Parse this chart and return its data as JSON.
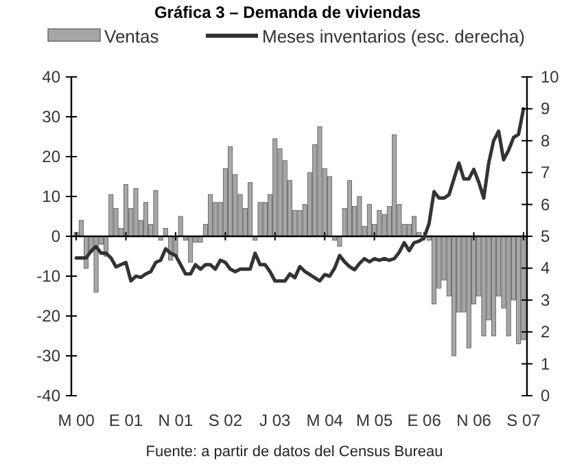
{
  "chart_data": {
    "type": "bar",
    "title": "Gráfica 3 – Demanda de viviendas",
    "categories": [
      "M 00",
      null,
      null,
      null,
      null,
      null,
      null,
      null,
      null,
      null,
      "E 01",
      null,
      null,
      null,
      null,
      null,
      null,
      null,
      null,
      null,
      "N 01",
      null,
      null,
      null,
      null,
      null,
      null,
      null,
      null,
      null,
      "S 02",
      null,
      null,
      null,
      null,
      null,
      null,
      null,
      null,
      null,
      "J 03",
      null,
      null,
      null,
      null,
      null,
      null,
      null,
      null,
      null,
      "M 04",
      null,
      null,
      null,
      null,
      null,
      null,
      null,
      null,
      null,
      "M 05",
      null,
      null,
      null,
      null,
      null,
      null,
      null,
      null,
      null,
      "E 06",
      null,
      null,
      null,
      null,
      null,
      null,
      null,
      null,
      null,
      "N 06",
      null,
      null,
      null,
      null,
      null,
      null,
      null,
      null,
      null,
      "S 07"
    ],
    "series": [
      {
        "name": "Ventas",
        "color": "#a6a6a6",
        "values": [
          1,
          4,
          -8,
          -4,
          -14,
          -2,
          -5,
          10.5,
          7,
          2,
          13,
          7,
          12,
          4,
          8.5,
          3,
          11.5,
          -1,
          2,
          -6,
          -5,
          5,
          -1,
          -6.5,
          -1.5,
          -1.5,
          3,
          10.5,
          8.5,
          8.5,
          17,
          22.5,
          15.5,
          10.5,
          7,
          13.5,
          -1,
          8.5,
          8.5,
          10.5,
          24.5,
          22,
          19,
          14,
          6.5,
          6.5,
          8,
          16,
          23,
          27.5,
          17,
          15,
          -1,
          -2.5,
          7,
          14,
          7.5,
          10,
          2.5,
          8,
          3,
          6.5,
          5.5,
          7.5,
          25.5,
          8,
          3,
          3,
          5,
          1,
          0,
          -1,
          -17,
          -13,
          -11,
          -15,
          -30,
          -19,
          -19,
          -28,
          -17,
          -15,
          -25,
          -21,
          -25,
          -15,
          -18,
          -25,
          -16,
          -27,
          -26
        ]
      },
      {
        "name": "Meses inventarios (esc. derecha)",
        "type": "line",
        "axis": "y2",
        "color": "#333333",
        "values": [
          4.32,
          4.32,
          4.32,
          4.54,
          4.68,
          4.47,
          4.47,
          4.32,
          4.04,
          4.11,
          4.18,
          3.6,
          3.75,
          3.71,
          3.82,
          3.89,
          4.18,
          4.25,
          4.61,
          4.47,
          4.4,
          4.11,
          3.82,
          3.82,
          4.11,
          3.97,
          4.11,
          4.11,
          3.97,
          4.25,
          4.18,
          3.97,
          3.89,
          3.97,
          3.97,
          3.97,
          4.47,
          4.11,
          4.11,
          3.89,
          3.6,
          3.6,
          3.6,
          3.82,
          3.7,
          4.05,
          3.9,
          3.8,
          3.7,
          3.6,
          3.8,
          3.75,
          4.0,
          4.4,
          4.2,
          4.05,
          3.95,
          4.15,
          4.3,
          4.2,
          4.3,
          4.25,
          4.3,
          4.25,
          4.3,
          4.5,
          4.8,
          4.55,
          4.8,
          4.85,
          4.95,
          5.4,
          6.4,
          6.2,
          6.2,
          6.3,
          6.8,
          7.3,
          6.8,
          6.8,
          7.1,
          6.7,
          6.2,
          7.3,
          8.0,
          8.3,
          7.4,
          7.7,
          8.1,
          8.2,
          9.0
        ]
      }
    ],
    "ylim": [
      -40,
      40
    ],
    "yticks": [
      -40,
      -30,
      -20,
      -10,
      0,
      10,
      20,
      30,
      40
    ],
    "y2lim": [
      0,
      10
    ],
    "y2ticks": [
      0,
      1,
      2,
      3,
      4,
      5,
      6,
      7,
      8,
      9,
      10
    ],
    "legend": "top",
    "annotations": [
      "Fuente: a partir de datos del Census Bureau"
    ]
  }
}
